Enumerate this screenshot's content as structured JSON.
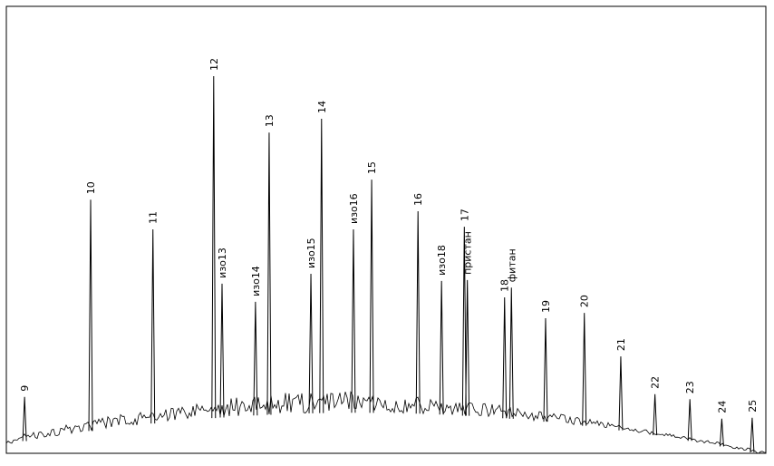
{
  "chart_data": {
    "type": "chromatogram",
    "color": "#000000",
    "xlim": [
      0,
      100
    ],
    "ylim": [
      0,
      100
    ],
    "labels": [
      "9",
      "10",
      "11",
      "12",
      "изо13",
      "изо14",
      "13",
      "изо15",
      "14",
      "изо16",
      "15",
      "16",
      "изо18",
      "17",
      "пристан",
      "18",
      "фитан",
      "19",
      "20",
      "21",
      "22",
      "23",
      "24",
      "25"
    ],
    "x": [
      2.4,
      11.1,
      19.3,
      27.3,
      28.4,
      32.8,
      34.6,
      40.1,
      41.5,
      45.7,
      48.1,
      54.2,
      57.3,
      60.3,
      60.7,
      65.6,
      66.5,
      71.0,
      76.1,
      80.9,
      85.4,
      90.0,
      94.2,
      98.2
    ],
    "values": [
      12.7,
      57.1,
      50.4,
      84.9,
      38.2,
      34.1,
      72.2,
      40.4,
      75.3,
      50.4,
      61.6,
      54.5,
      38.8,
      51.0,
      39.0,
      35.1,
      37.3,
      30.4,
      31.6,
      21.8,
      13.3,
      12.2,
      7.8,
      8.0
    ]
  }
}
